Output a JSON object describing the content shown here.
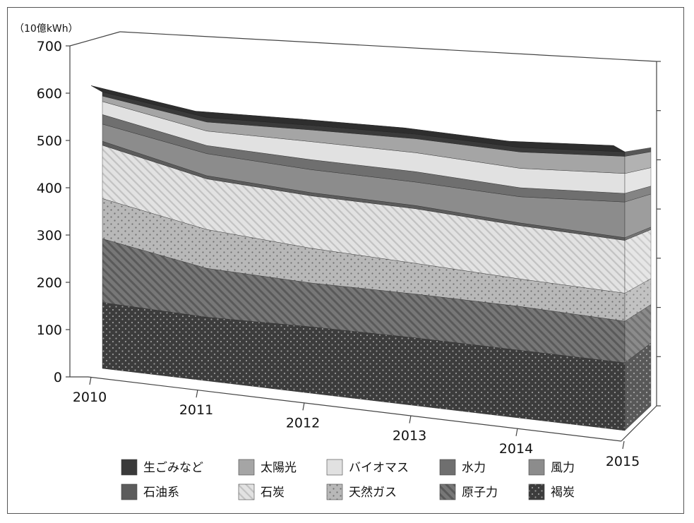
{
  "chart_data": {
    "type": "area",
    "stacked": true,
    "projection": "3d",
    "unit_label": "（10億kWh）",
    "x": [
      "2010",
      "2011",
      "2012",
      "2013",
      "2014",
      "2015"
    ],
    "ylim": [
      0,
      700
    ],
    "yticks": [
      0,
      100,
      200,
      300,
      400,
      500,
      600,
      700
    ],
    "grid": false,
    "legend_position": "bottom",
    "series": [
      {
        "name": "褐炭",
        "values": [
          146,
          141,
          147,
          150,
          150,
          150
        ],
        "color": "#3c3c3c",
        "pattern": "dots-dark"
      },
      {
        "name": "原子力",
        "values": [
          141,
          108,
          97,
          97,
          97,
          92
        ],
        "color": "#767676",
        "pattern": "hatch-dark"
      },
      {
        "name": "天然ガス",
        "values": [
          89,
          86,
          77,
          68,
          61,
          62
        ],
        "color": "#b4b4b4",
        "pattern": "dots-light"
      },
      {
        "name": "石炭",
        "values": [
          118,
          112,
          116,
          121,
          118,
          117
        ],
        "color": "#d6d6d6",
        "pattern": "hatch-light"
      },
      {
        "name": "石油系",
        "values": [
          9,
          7,
          7,
          7,
          6,
          6
        ],
        "color": "#5c5c5c",
        "pattern": "solid"
      },
      {
        "name": "風力",
        "values": [
          38,
          49,
          51,
          52,
          58,
          79
        ],
        "color": "#8c8c8c",
        "pattern": "solid"
      },
      {
        "name": "水力",
        "values": [
          21,
          18,
          22,
          23,
          20,
          19
        ],
        "color": "#6f6f6f",
        "pattern": "solid"
      },
      {
        "name": "バイオマス",
        "values": [
          29,
          32,
          40,
          42,
          43,
          44
        ],
        "color": "#e1e1e1",
        "pattern": "solid"
      },
      {
        "name": "太陽光",
        "values": [
          12,
          20,
          26,
          31,
          36,
          38
        ],
        "color": "#a5a5a5",
        "pattern": "solid"
      },
      {
        "name": "生ごみなど",
        "values": [
          9,
          10,
          10,
          10,
          10,
          10
        ],
        "color": "#3a3a3a",
        "pattern": "solid"
      }
    ],
    "legend_order": [
      "生ごみなど",
      "太陽光",
      "バイオマス",
      "水力",
      "風力",
      "石油系",
      "石炭",
      "天然ガス",
      "原子力",
      "褐炭"
    ]
  }
}
